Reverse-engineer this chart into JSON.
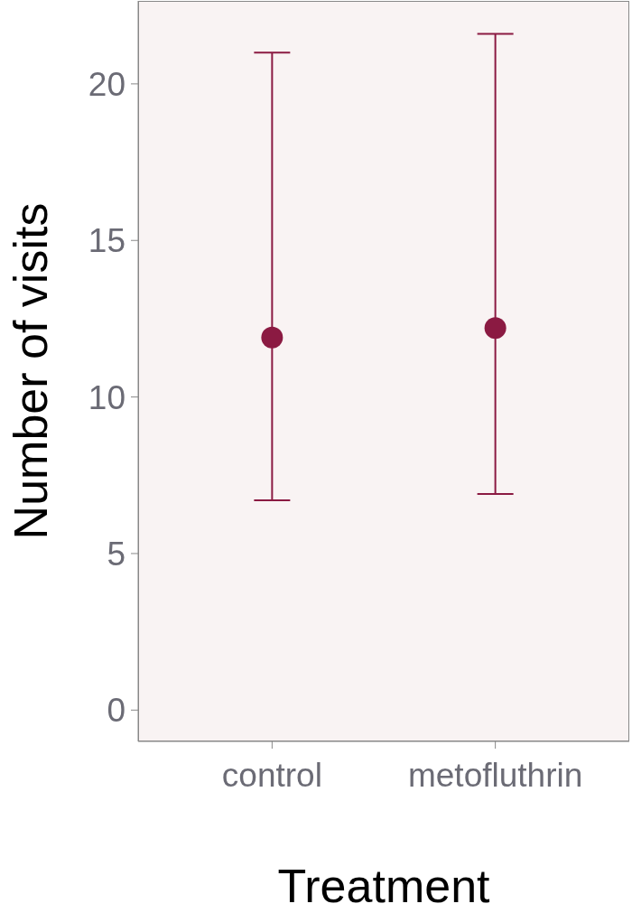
{
  "chart_data": {
    "type": "scatter",
    "xlabel": "Treatment",
    "ylabel": "Number of visits",
    "categories": [
      "control",
      "metofluthrin"
    ],
    "series": [
      {
        "color": "#8b1a42",
        "values": [
          11.9,
          12.2
        ],
        "errors": [
          [
            6.7,
            21.0
          ],
          [
            6.9,
            21.6
          ]
        ]
      }
    ],
    "ylim": [
      -1.0,
      22.65
    ],
    "yticks": [
      0,
      5,
      10,
      15,
      20
    ],
    "grid": false,
    "marker": "circle"
  }
}
